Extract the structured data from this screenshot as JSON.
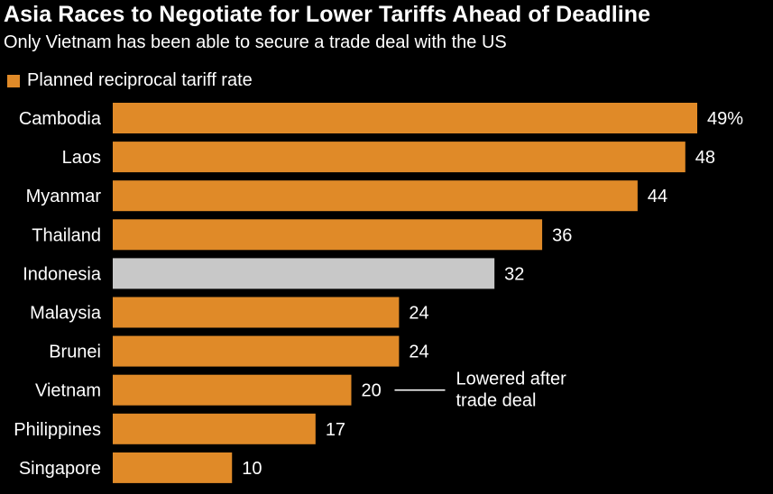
{
  "chart_data": {
    "type": "bar",
    "orientation": "horizontal",
    "title": "Asia Races to Negotiate for Lower Tariffs Ahead of Deadline",
    "subtitle": "Only Vietnam has been able to secure a trade deal with the US",
    "legend": [
      {
        "label": "Planned reciprocal tariff rate",
        "color": "#E08A28"
      }
    ],
    "categories": [
      "Cambodia",
      "Laos",
      "Myanmar",
      "Thailand",
      "Indonesia",
      "Malaysia",
      "Brunei",
      "Vietnam",
      "Philippines",
      "Singapore"
    ],
    "values": [
      49,
      48,
      44,
      36,
      32,
      24,
      24,
      20,
      17,
      10
    ],
    "value_labels": [
      "49%",
      "48",
      "44",
      "36",
      "32",
      "24",
      "24",
      "20",
      "17",
      "10"
    ],
    "bar_colors": [
      "#E08A28",
      "#E08A28",
      "#E08A28",
      "#E08A28",
      "#C8C8C8",
      "#E08A28",
      "#E08A28",
      "#E08A28",
      "#E08A28",
      "#E08A28"
    ],
    "xlim": [
      0,
      49
    ],
    "grid": false,
    "annotations": [
      {
        "category": "Vietnam",
        "lines": [
          "Lowered after",
          "trade deal"
        ]
      }
    ]
  }
}
